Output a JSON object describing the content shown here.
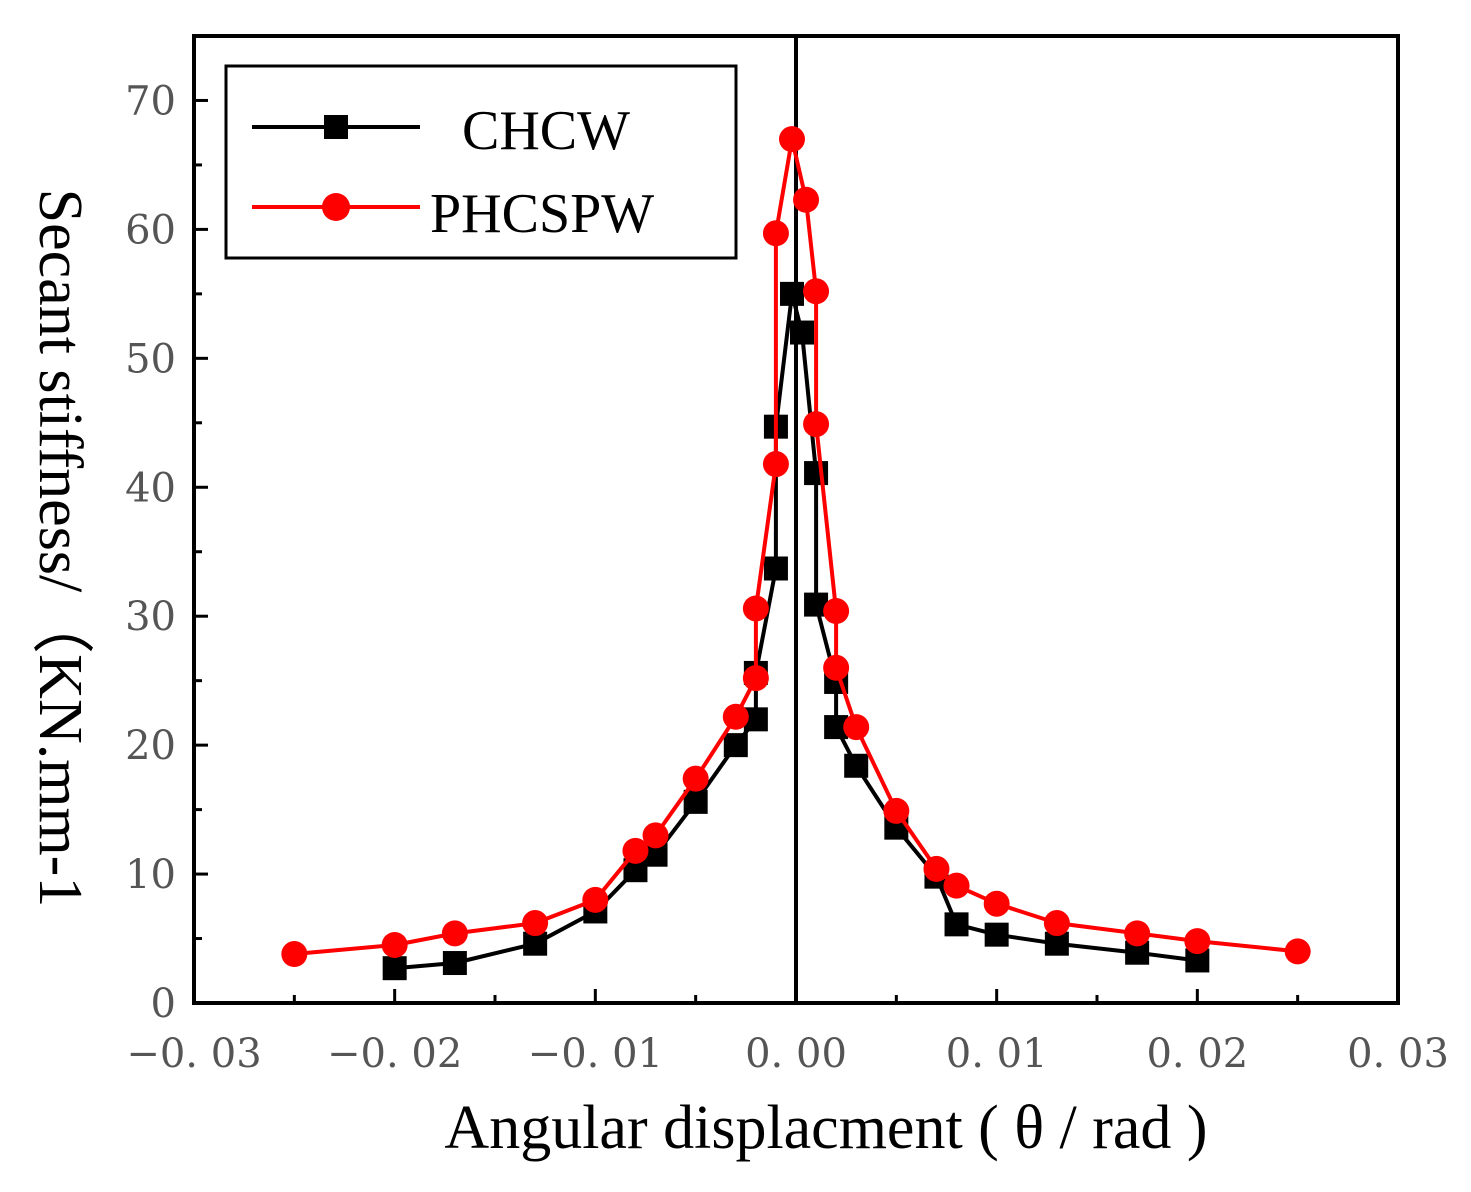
{
  "chart_data": {
    "type": "line",
    "title": "",
    "xlabel": "Angular displacment ( θ / rad )",
    "ylabel": "Secant stiffness/（KN.mm-1",
    "xlim": [
      -0.03,
      0.03
    ],
    "ylim": [
      0,
      75
    ],
    "x_ticks": [
      {
        "value": -0.03,
        "label": "−0. 03"
      },
      {
        "value": -0.02,
        "label": "−0. 02"
      },
      {
        "value": -0.01,
        "label": "−0. 01"
      },
      {
        "value": 0.0,
        "label": "0. 00"
      },
      {
        "value": 0.01,
        "label": "0. 01"
      },
      {
        "value": 0.02,
        "label": "0. 02"
      },
      {
        "value": 0.03,
        "label": "0. 03"
      }
    ],
    "y_ticks": [
      {
        "value": 0,
        "label": "0"
      },
      {
        "value": 10,
        "label": "10"
      },
      {
        "value": 20,
        "label": "20"
      },
      {
        "value": 30,
        "label": "30"
      },
      {
        "value": 40,
        "label": "40"
      },
      {
        "value": 50,
        "label": "50"
      },
      {
        "value": 60,
        "label": "60"
      },
      {
        "value": 70,
        "label": "70"
      }
    ],
    "reference_line_x": 0,
    "legend_position": "top-left",
    "series": [
      {
        "name": "CHCW",
        "color": "#000000",
        "marker": "square",
        "points": [
          {
            "x": -0.02,
            "y": 2.7
          },
          {
            "x": -0.017,
            "y": 3.1
          },
          {
            "x": -0.013,
            "y": 4.6
          },
          {
            "x": -0.01,
            "y": 7.1
          },
          {
            "x": -0.008,
            "y": 10.3
          },
          {
            "x": -0.007,
            "y": 11.5
          },
          {
            "x": -0.005,
            "y": 15.6
          },
          {
            "x": -0.003,
            "y": 20.0
          },
          {
            "x": -0.002,
            "y": 22.0
          },
          {
            "x": -0.002,
            "y": 25.6
          },
          {
            "x": -0.001,
            "y": 33.7
          },
          {
            "x": -0.001,
            "y": 44.7
          },
          {
            "x": -0.0002,
            "y": 55.0
          },
          {
            "x": 0.0003,
            "y": 52.0
          },
          {
            "x": 0.001,
            "y": 41.1
          },
          {
            "x": 0.001,
            "y": 30.9
          },
          {
            "x": 0.002,
            "y": 24.9
          },
          {
            "x": 0.002,
            "y": 21.4
          },
          {
            "x": 0.003,
            "y": 18.4
          },
          {
            "x": 0.005,
            "y": 13.6
          },
          {
            "x": 0.007,
            "y": 9.8
          },
          {
            "x": 0.008,
            "y": 6.1
          },
          {
            "x": 0.01,
            "y": 5.3
          },
          {
            "x": 0.013,
            "y": 4.6
          },
          {
            "x": 0.017,
            "y": 3.9
          },
          {
            "x": 0.02,
            "y": 3.3
          }
        ]
      },
      {
        "name": "PHCSPW",
        "color": "#ff0000",
        "marker": "circle",
        "points": [
          {
            "x": -0.025,
            "y": 3.8
          },
          {
            "x": -0.02,
            "y": 4.5
          },
          {
            "x": -0.017,
            "y": 5.4
          },
          {
            "x": -0.013,
            "y": 6.2
          },
          {
            "x": -0.01,
            "y": 8.0
          },
          {
            "x": -0.008,
            "y": 11.8
          },
          {
            "x": -0.007,
            "y": 13.0
          },
          {
            "x": -0.005,
            "y": 17.4
          },
          {
            "x": -0.003,
            "y": 22.2
          },
          {
            "x": -0.002,
            "y": 25.2
          },
          {
            "x": -0.002,
            "y": 30.6
          },
          {
            "x": -0.001,
            "y": 41.8
          },
          {
            "x": -0.001,
            "y": 59.7
          },
          {
            "x": -0.0002,
            "y": 67.0
          },
          {
            "x": 0.0005,
            "y": 62.3
          },
          {
            "x": 0.001,
            "y": 55.2
          },
          {
            "x": 0.001,
            "y": 44.9
          },
          {
            "x": 0.002,
            "y": 30.4
          },
          {
            "x": 0.002,
            "y": 26.0
          },
          {
            "x": 0.003,
            "y": 21.4
          },
          {
            "x": 0.005,
            "y": 14.9
          },
          {
            "x": 0.007,
            "y": 10.4
          },
          {
            "x": 0.008,
            "y": 9.1
          },
          {
            "x": 0.01,
            "y": 7.7
          },
          {
            "x": 0.013,
            "y": 6.2
          },
          {
            "x": 0.017,
            "y": 5.4
          },
          {
            "x": 0.02,
            "y": 4.8
          },
          {
            "x": 0.025,
            "y": 4.0
          }
        ]
      }
    ]
  }
}
